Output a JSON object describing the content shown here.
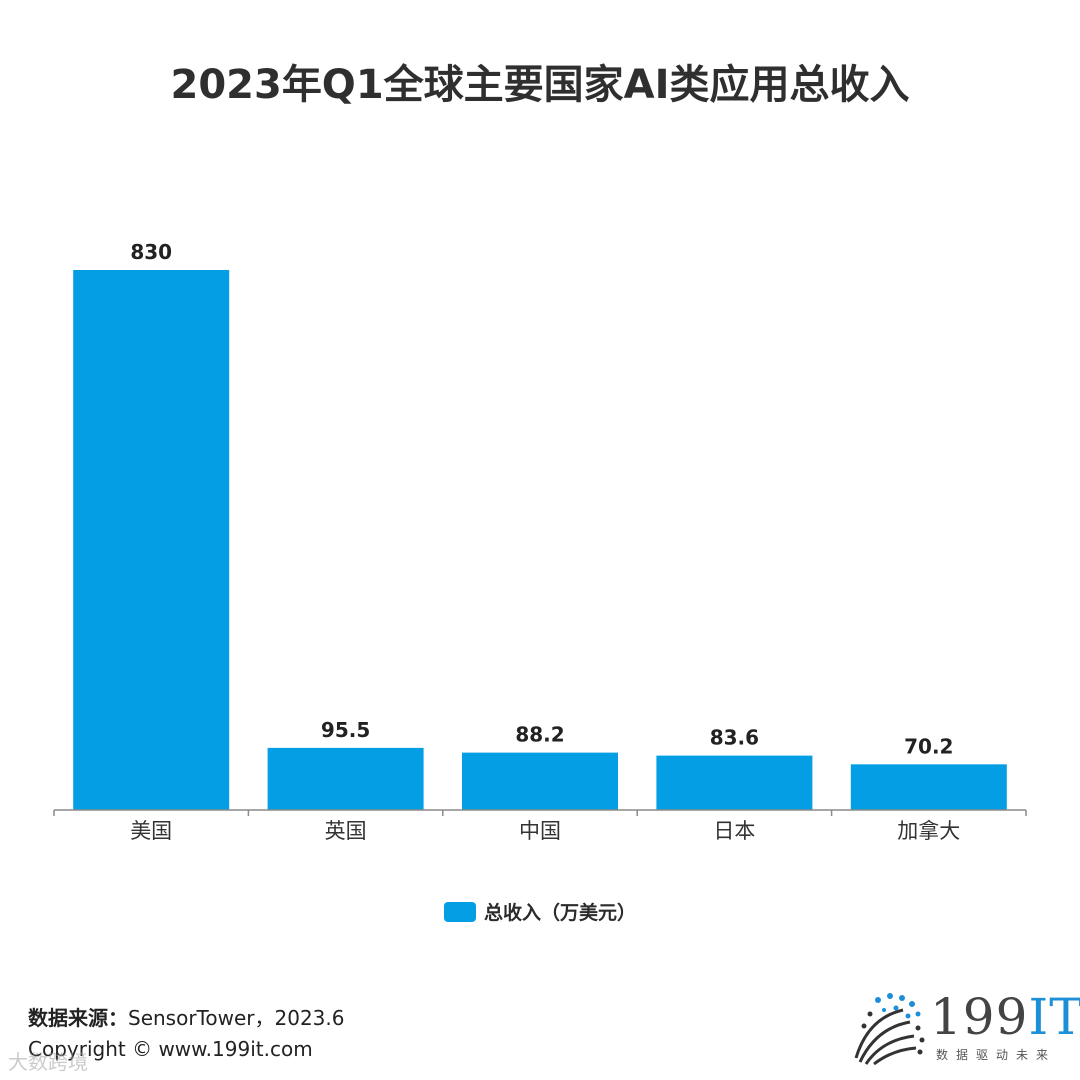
{
  "title": "2023年Q1全球主要国家AI类应用总收入",
  "chart_data": {
    "type": "bar",
    "title": "2023年Q1全球主要国家AI类应用总收入",
    "categories": [
      "美国",
      "英国",
      "中国",
      "日本",
      "加拿大"
    ],
    "series": [
      {
        "name": "总收入（万美元）",
        "values": [
          830,
          95.5,
          88.2,
          83.6,
          70.2
        ],
        "color": "#039ee4"
      }
    ],
    "data_labels": [
      "830",
      "95.5",
      "88.2",
      "83.6",
      "70.2"
    ],
    "ylim": [
      0,
      830
    ],
    "grid": false,
    "legend_position": "bottom-center"
  },
  "legend": {
    "label": "总收入（万美元）"
  },
  "footer": {
    "source_label": "数据来源：",
    "source_value": "SensorTower，2023.6",
    "copyright": "Copyright © www.199it.com"
  },
  "watermark": "大数跨境",
  "logo": {
    "number": "199",
    "it": "IT",
    "slogan": "数据驱动未来",
    "accent": "#1d8fd6"
  }
}
